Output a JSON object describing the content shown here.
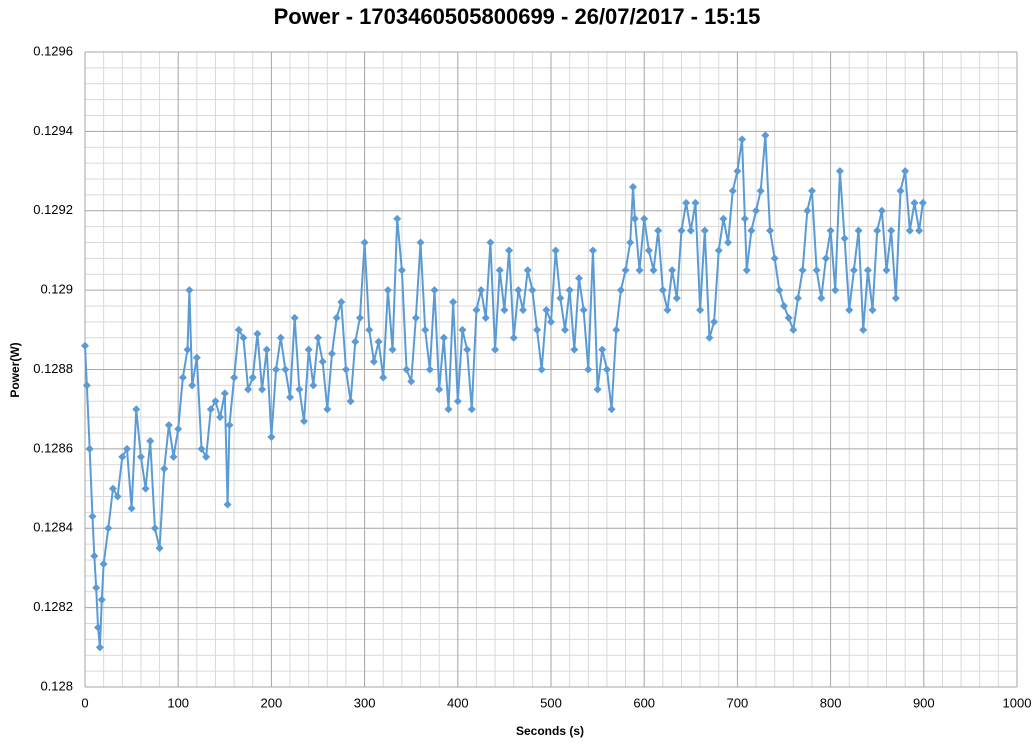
{
  "chart_data": {
    "type": "line",
    "title": "Power - 1703460505800699 - 26/07/2017 - 15:15",
    "x_label": "Seconds (s)",
    "y_label": "Power(W)",
    "xlim": [
      0,
      1000
    ],
    "xticks": [
      0,
      100,
      200,
      300,
      400,
      500,
      600,
      700,
      800,
      900,
      1000
    ],
    "ylim": [
      0.128,
      0.1296
    ],
    "yticks": [
      0.128,
      0.1282,
      0.1284,
      0.1286,
      0.1288,
      0.129,
      0.1292,
      0.1294,
      0.1296
    ],
    "grid": true,
    "minor_divisions": 5,
    "color": "#5b9bd5",
    "marker": "diamond",
    "x": [
      0,
      2,
      5,
      8,
      10,
      12,
      14,
      16,
      18,
      20,
      25,
      30,
      35,
      40,
      45,
      50,
      55,
      60,
      65,
      70,
      75,
      80,
      85,
      90,
      95,
      100,
      105,
      110,
      112,
      115,
      120,
      125,
      130,
      135,
      140,
      145,
      150,
      153,
      155,
      160,
      165,
      170,
      175,
      180,
      185,
      190,
      195,
      200,
      205,
      210,
      215,
      220,
      225,
      230,
      235,
      240,
      245,
      250,
      255,
      260,
      265,
      270,
      275,
      280,
      285,
      290,
      295,
      300,
      305,
      310,
      315,
      320,
      325,
      330,
      335,
      340,
      345,
      350,
      355,
      360,
      365,
      370,
      375,
      380,
      385,
      390,
      395,
      400,
      405,
      410,
      415,
      420,
      425,
      430,
      435,
      440,
      445,
      450,
      455,
      460,
      465,
      470,
      475,
      480,
      485,
      490,
      495,
      500,
      505,
      510,
      515,
      520,
      525,
      530,
      535,
      540,
      545,
      550,
      555,
      560,
      565,
      570,
      575,
      580,
      585,
      588,
      590,
      595,
      600,
      605,
      610,
      615,
      620,
      625,
      630,
      635,
      640,
      645,
      650,
      655,
      660,
      665,
      670,
      675,
      680,
      685,
      690,
      695,
      700,
      705,
      708,
      710,
      715,
      720,
      725,
      730,
      735,
      740,
      745,
      750,
      755,
      760,
      765,
      770,
      775,
      780,
      785,
      790,
      795,
      800,
      805,
      810,
      815,
      820,
      825,
      830,
      835,
      840,
      845,
      850,
      855,
      860,
      865,
      870,
      875,
      880,
      885,
      890,
      895,
      899
    ],
    "values": [
      0.12886,
      0.12876,
      0.1286,
      0.12843,
      0.12833,
      0.12825,
      0.12815,
      0.1281,
      0.12822,
      0.12831,
      0.1284,
      0.1285,
      0.12848,
      0.12858,
      0.1286,
      0.12845,
      0.1287,
      0.12858,
      0.1285,
      0.12862,
      0.1284,
      0.12835,
      0.12855,
      0.12866,
      0.12858,
      0.12865,
      0.12878,
      0.12885,
      0.129,
      0.12876,
      0.12883,
      0.1286,
      0.12858,
      0.1287,
      0.12872,
      0.12868,
      0.12874,
      0.12846,
      0.12866,
      0.12878,
      0.1289,
      0.12888,
      0.12875,
      0.12878,
      0.12889,
      0.12875,
      0.12885,
      0.12863,
      0.1288,
      0.12888,
      0.1288,
      0.12873,
      0.12893,
      0.12875,
      0.12867,
      0.12885,
      0.12876,
      0.12888,
      0.12882,
      0.1287,
      0.12884,
      0.12893,
      0.12897,
      0.1288,
      0.12872,
      0.12887,
      0.12893,
      0.12912,
      0.1289,
      0.12882,
      0.12887,
      0.12878,
      0.129,
      0.12885,
      0.12918,
      0.12905,
      0.1288,
      0.12877,
      0.12893,
      0.12912,
      0.1289,
      0.1288,
      0.129,
      0.12875,
      0.12888,
      0.1287,
      0.12897,
      0.12872,
      0.1289,
      0.12885,
      0.1287,
      0.12895,
      0.129,
      0.12893,
      0.12912,
      0.12885,
      0.12905,
      0.12895,
      0.1291,
      0.12888,
      0.129,
      0.12895,
      0.12905,
      0.129,
      0.1289,
      0.1288,
      0.12895,
      0.12892,
      0.1291,
      0.12898,
      0.1289,
      0.129,
      0.12885,
      0.12903,
      0.12895,
      0.1288,
      0.1291,
      0.12875,
      0.12885,
      0.1288,
      0.1287,
      0.1289,
      0.129,
      0.12905,
      0.12912,
      0.12926,
      0.12918,
      0.12905,
      0.12918,
      0.1291,
      0.12905,
      0.12915,
      0.129,
      0.12895,
      0.12905,
      0.12898,
      0.12915,
      0.12922,
      0.12915,
      0.12922,
      0.12895,
      0.12915,
      0.12888,
      0.12892,
      0.1291,
      0.12918,
      0.12912,
      0.12925,
      0.1293,
      0.12938,
      0.12918,
      0.12905,
      0.12915,
      0.1292,
      0.12925,
      0.12939,
      0.12915,
      0.12908,
      0.129,
      0.12896,
      0.12893,
      0.1289,
      0.12898,
      0.12905,
      0.1292,
      0.12925,
      0.12905,
      0.12898,
      0.12908,
      0.12915,
      0.129,
      0.1293,
      0.12913,
      0.12895,
      0.12905,
      0.12915,
      0.1289,
      0.12905,
      0.12895,
      0.12915,
      0.1292,
      0.12905,
      0.12915,
      0.12898,
      0.12925,
      0.1293,
      0.12915,
      0.12922,
      0.12915,
      0.12922
    ]
  }
}
